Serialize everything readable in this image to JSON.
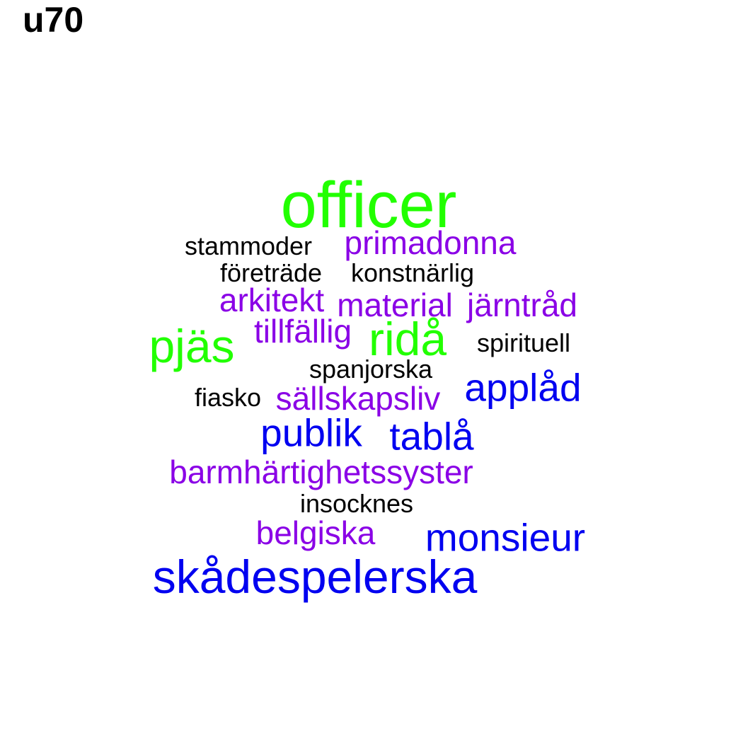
{
  "title": "u70",
  "colors": {
    "green": "#22ff00",
    "purple": "#8a00e6",
    "blue": "#0000f0",
    "black": "#000000"
  },
  "words": [
    {
      "text": "officer",
      "color": "#22ff00"
    },
    {
      "text": "stammoder",
      "color": "#000000"
    },
    {
      "text": "primadonna",
      "color": "#8a00e6"
    },
    {
      "text": "företräde",
      "color": "#000000"
    },
    {
      "text": "konstnärlig",
      "color": "#000000"
    },
    {
      "text": "arkitekt",
      "color": "#8a00e6"
    },
    {
      "text": "material",
      "color": "#8a00e6"
    },
    {
      "text": "järntråd",
      "color": "#8a00e6"
    },
    {
      "text": "pjäs",
      "color": "#22ff00"
    },
    {
      "text": "tillfällig",
      "color": "#8a00e6"
    },
    {
      "text": "ridå",
      "color": "#22ff00"
    },
    {
      "text": "spirituell",
      "color": "#000000"
    },
    {
      "text": "spanjorska",
      "color": "#000000"
    },
    {
      "text": "applåd",
      "color": "#0000f0"
    },
    {
      "text": "fiasko",
      "color": "#000000"
    },
    {
      "text": "sällskapsliv",
      "color": "#8a00e6"
    },
    {
      "text": "publik",
      "color": "#0000f0"
    },
    {
      "text": "tablå",
      "color": "#0000f0"
    },
    {
      "text": "barmhärtighetssyster",
      "color": "#8a00e6"
    },
    {
      "text": "insocknes",
      "color": "#000000"
    },
    {
      "text": "belgiska",
      "color": "#8a00e6"
    },
    {
      "text": "monsieur",
      "color": "#0000f0"
    },
    {
      "text": "skådespelerska",
      "color": "#0000f0"
    }
  ]
}
